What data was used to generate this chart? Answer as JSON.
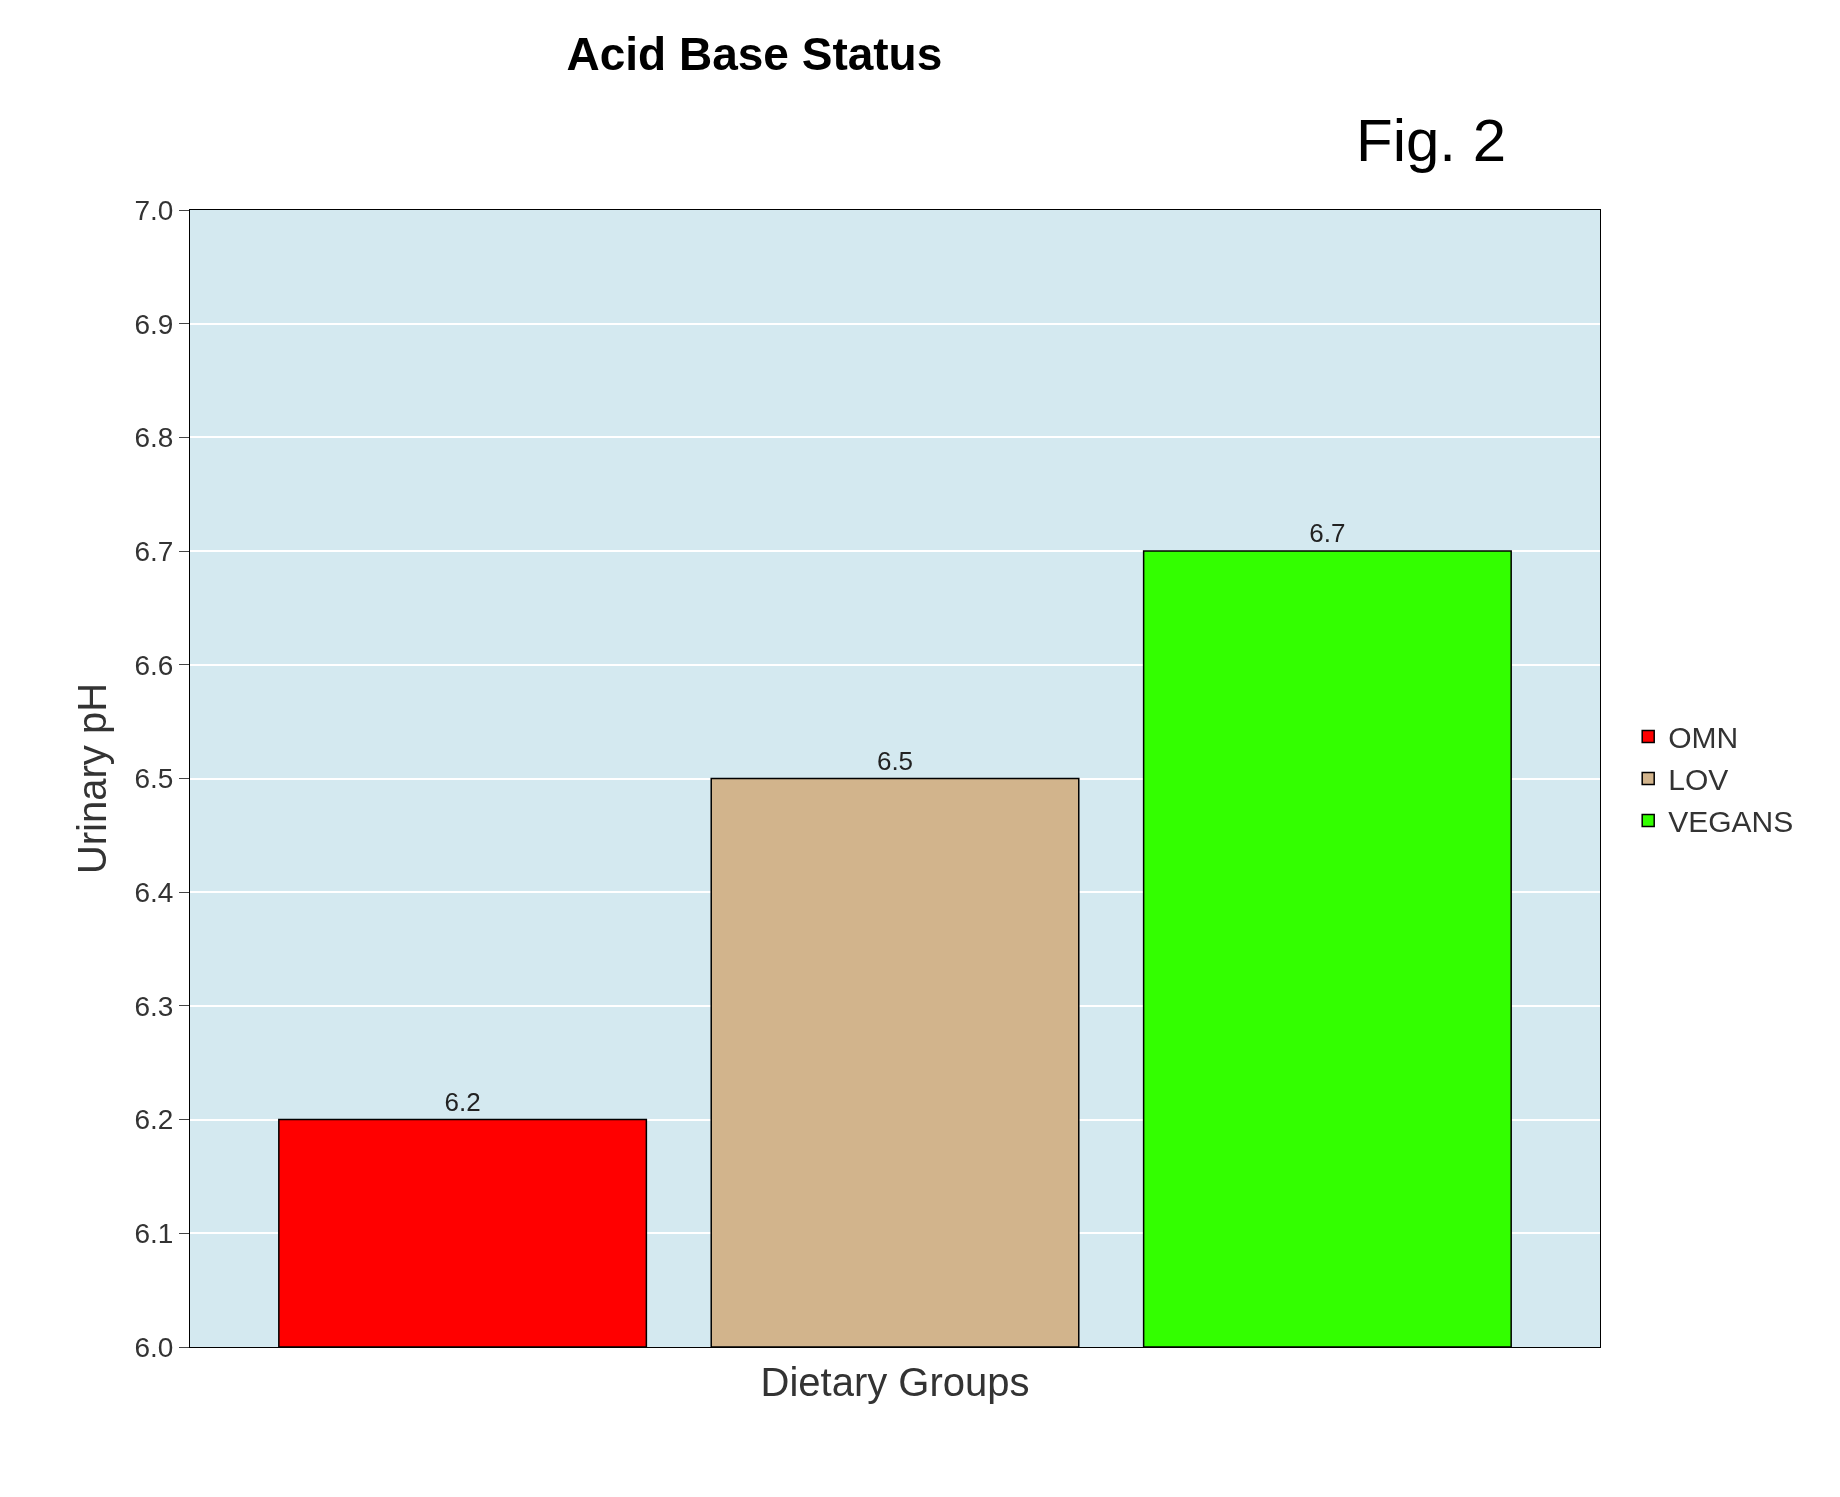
{
  "chart_data": {
    "type": "bar",
    "title": "Acid Base Status",
    "xlabel": "Dietary Groups",
    "ylabel": "Urinary pH",
    "annotations": [
      "Fig. 2"
    ],
    "categories": [
      null
    ],
    "series": [
      {
        "name": "OMN",
        "color": "#ff0000",
        "values": [
          6.2
        ]
      },
      {
        "name": "LOV",
        "color": "#d2b48c",
        "values": [
          6.5
        ]
      },
      {
        "name": "VEGANS",
        "color": "#33ff00",
        "values": [
          6.7
        ]
      }
    ],
    "ylim": [
      6.0,
      7.0
    ],
    "yticks": [
      {
        "value": 6.0,
        "label": "6.0"
      },
      6.1,
      6.2,
      6.3,
      6.4,
      6.5,
      6.6,
      6.7,
      6.8,
      6.9,
      {
        "value": 7.0,
        "label": "7.0"
      }
    ],
    "grid": "y",
    "legend": "right",
    "data_labels": true
  }
}
